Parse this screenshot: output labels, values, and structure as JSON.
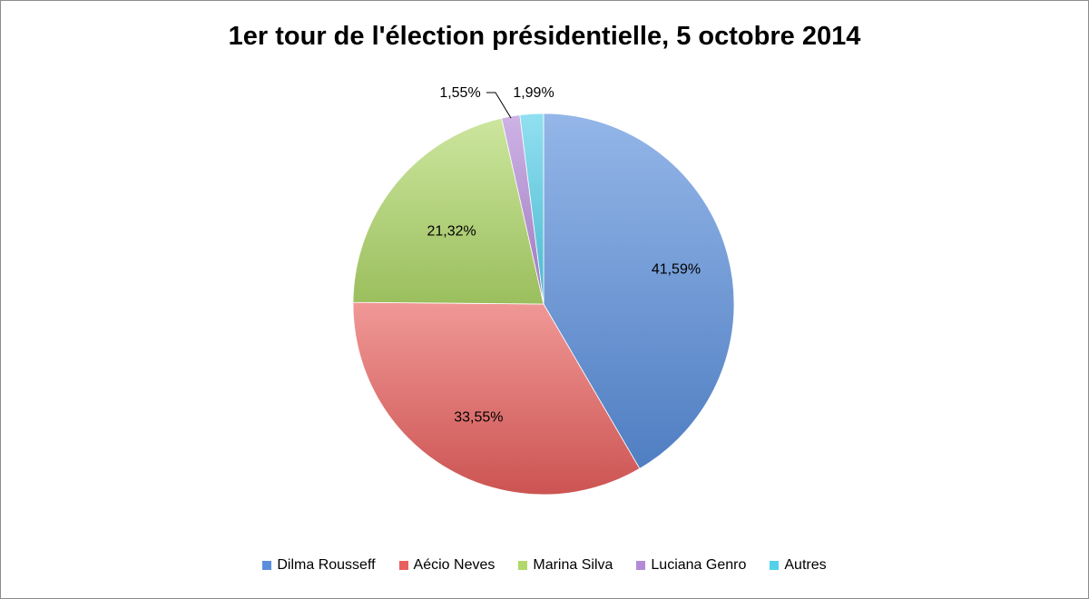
{
  "chart_data": {
    "type": "pie",
    "title": "1er tour de l'élection présidentielle, 5 octobre 2014",
    "slices": [
      {
        "name": "Dilma Rousseff",
        "value": 41.59,
        "label": "41,59%",
        "color": "#5a8fdc"
      },
      {
        "name": "Aécio Neves",
        "value": 33.55,
        "label": "33,55%",
        "color": "#e8605d"
      },
      {
        "name": "Marina Silva",
        "value": 21.32,
        "label": "21,32%",
        "color": "#b0d86a"
      },
      {
        "name": "Luciana Genro",
        "value": 1.55,
        "label": "1,55%",
        "color": "#b38ad8"
      },
      {
        "name": "Autres",
        "value": 1.99,
        "label": "1,99%",
        "color": "#55d0ea"
      }
    ],
    "legend_position": "bottom"
  }
}
